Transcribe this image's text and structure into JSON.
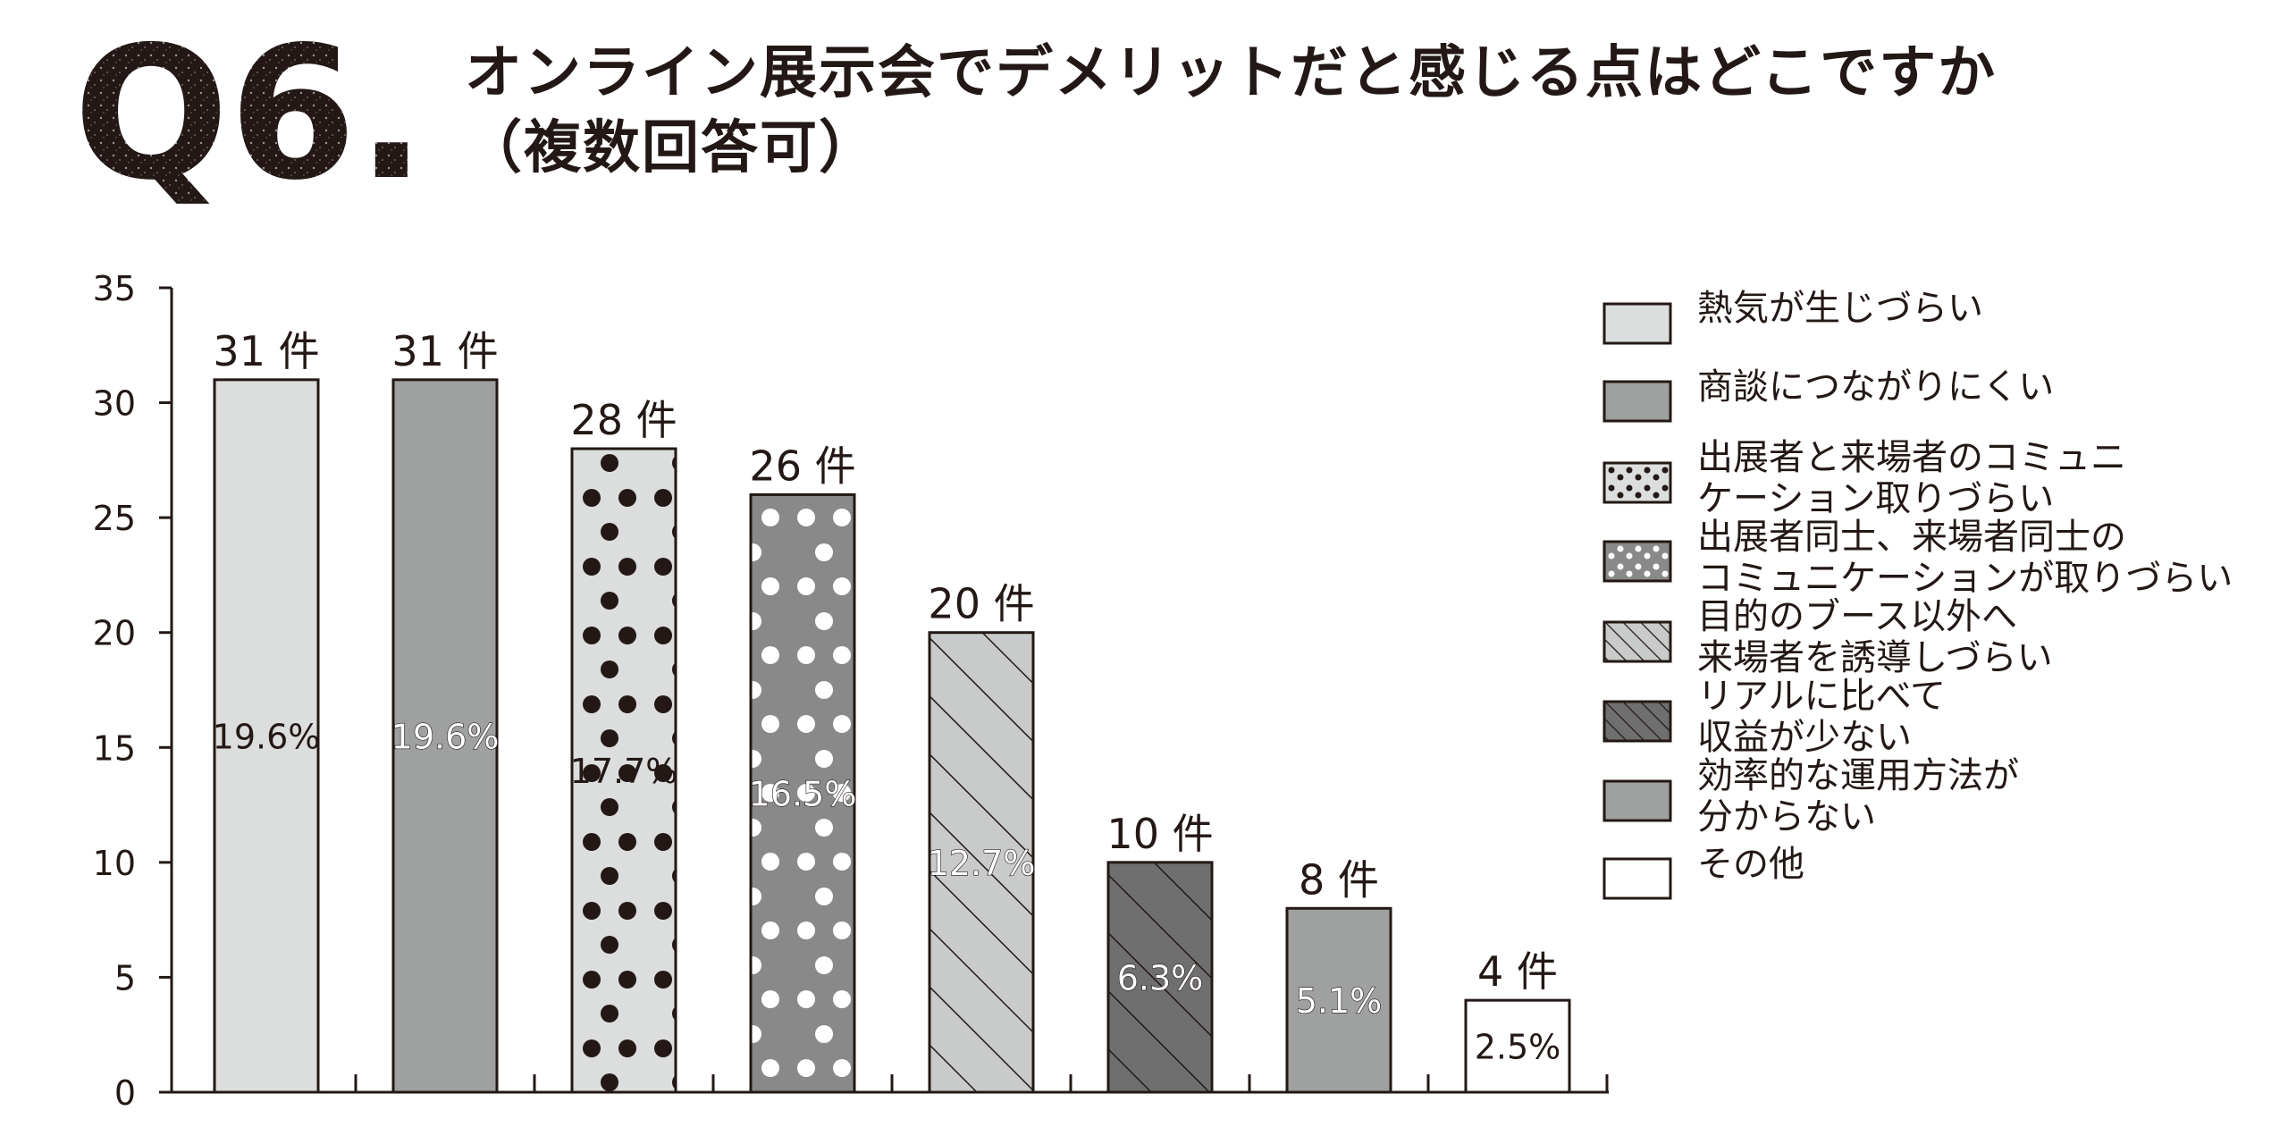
{
  "question": {
    "badge": "Q6.",
    "title_line1": "オンライン展示会でデメリットだと感じる点はどこですか",
    "title_line2": "（複数回答可）"
  },
  "chart_data": {
    "type": "bar",
    "categories": [
      "熱気が生じづらい",
      "商談につながりにくい",
      "出展者と来場者のコミュニ\nケーション取りづらい",
      "出展者同士、来場者同士の\nコミュニケーションが取りづらい",
      "目的のブース以外へ\n来場者を誘導しづらい",
      "リアルに比べて\n収益が少ない",
      "効率的な運用方法が\n分からない",
      "その他"
    ],
    "values": [
      31,
      31,
      28,
      26,
      20,
      10,
      8,
      4
    ],
    "value_labels": [
      "31 件",
      "31 件",
      "28 件",
      "26 件",
      "20 件",
      "10 件",
      "8 件",
      "4 件"
    ],
    "percent_labels": [
      "19.6%",
      "19.6%",
      "17.7%",
      "16.5%",
      "12.7%",
      "6.3%",
      "5.1%",
      "2.5%"
    ],
    "ylim": [
      0,
      35
    ],
    "yticks": [
      "0",
      "5",
      "10",
      "15",
      "20",
      "25",
      "30",
      "35"
    ],
    "patterns": [
      "solid-light",
      "solid-gray",
      "dots-dark",
      "dots-white",
      "hatch-light",
      "hatch-dark",
      "solid-gray",
      "solid-white"
    ],
    "fill_colors": [
      "#dcdddd",
      "#9fa0a0",
      "#dcdddd",
      "#898989",
      "#c9caca",
      "#6f6f6f",
      "#9fa0a0",
      "#ffffff"
    ],
    "legend_position": "right",
    "grid": false,
    "title": "",
    "xlabel": "",
    "ylabel": ""
  }
}
